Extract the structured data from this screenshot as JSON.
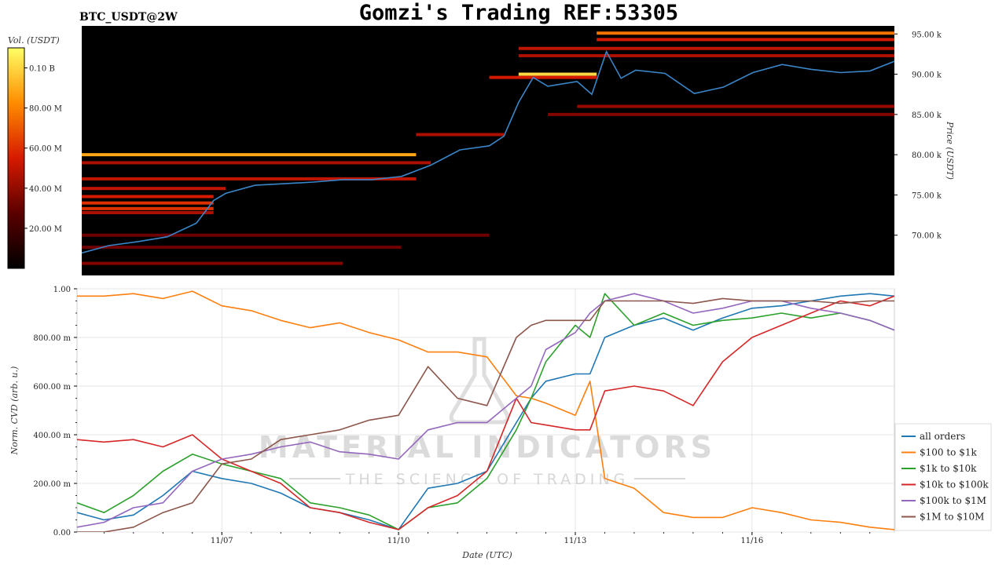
{
  "header": {
    "symbol": "BTC_USDT@2W",
    "title": "Gomzi's Trading REF:53305"
  },
  "watermark": {
    "line1": "MATERIAL INDICATORS",
    "line2": "THE SCIENCE OF TRADING"
  },
  "colors": {
    "price_line": "#3a86c8",
    "heat_background": "#000000",
    "series": [
      "#1f77b4",
      "#ff7f0e",
      "#2ca02c",
      "#d62728",
      "#9467bd",
      "#8c564b"
    ]
  },
  "chart_data": [
    {
      "type": "heatmap",
      "colorbar": {
        "label": "Vol. (USDT)",
        "ticks": [
          {
            "value": 20000000,
            "label": "20.00 M"
          },
          {
            "value": 40000000,
            "label": "40.00 M"
          },
          {
            "value": 60000000,
            "label": "60.00 M"
          },
          {
            "value": 80000000,
            "label": "80.00 M"
          },
          {
            "value": 100000000,
            "label": "0.10 B"
          }
        ],
        "range": [
          0,
          110000000
        ]
      },
      "ylabel": "Price (USDT)",
      "ylim": [
        65000,
        96000
      ],
      "yticks": [
        {
          "value": 70000,
          "label": "70.00 k"
        },
        {
          "value": 75000,
          "label": "75.00 k"
        },
        {
          "value": 80000,
          "label": "80.00 k"
        },
        {
          "value": 85000,
          "label": "85.00 k"
        },
        {
          "value": 90000,
          "label": "90.00 k"
        },
        {
          "value": 95000,
          "label": "95.00 k"
        }
      ],
      "xlim": [
        "11/04 13:00",
        "11/18 10:00"
      ],
      "price_line": {
        "x": [
          "11/04 13:00",
          "11/05 00:00",
          "11/05 12:00",
          "11/06 00:00",
          "11/06 12:00",
          "11/06 19:00",
          "11/07 00:00",
          "11/07 12:00",
          "11/08 00:00",
          "11/08 12:00",
          "11/09 00:00",
          "11/09 12:00",
          "11/10 00:00",
          "11/10 12:00",
          "11/11 00:00",
          "11/11 12:00",
          "11/11 18:00",
          "11/12 00:00",
          "11/12 06:00",
          "11/12 12:00",
          "11/13 00:00",
          "11/13 06:00",
          "11/13 12:00",
          "11/13 18:00",
          "11/14 00:00",
          "11/14 12:00",
          "11/15 00:00",
          "11/15 12:00",
          "11/16 00:00",
          "11/16 12:00",
          "11/17 00:00",
          "11/17 12:00",
          "11/18 00:00",
          "11/18 10:00"
        ],
        "y": [
          67800,
          68700,
          69200,
          69800,
          71500,
          74300,
          75200,
          76200,
          76400,
          76600,
          76900,
          76900,
          77300,
          78700,
          80600,
          81100,
          82300,
          86500,
          89600,
          88500,
          89100,
          87500,
          92800,
          89500,
          90500,
          90100,
          87600,
          88400,
          90200,
          91200,
          90600,
          90200,
          90400,
          91600
        ]
      },
      "walls": [
        {
          "price": 95100,
          "from": "11/13 08:00",
          "to": "11/18 10:00",
          "level": 0.75
        },
        {
          "price": 94300,
          "from": "11/13 08:00",
          "to": "11/18 10:00",
          "level": 0.55
        },
        {
          "price": 93200,
          "from": "11/12 00:00",
          "to": "11/18 10:00",
          "level": 0.5
        },
        {
          "price": 92300,
          "from": "11/12 00:00",
          "to": "11/18 10:00",
          "level": 0.45
        },
        {
          "price": 90000,
          "from": "11/12 00:00",
          "to": "11/13 08:00",
          "level": 0.95
        },
        {
          "price": 89600,
          "from": "11/11 12:00",
          "to": "11/13 08:00",
          "level": 0.55
        },
        {
          "price": 86000,
          "from": "11/13 00:00",
          "to": "11/18 10:00",
          "level": 0.4
        },
        {
          "price": 85000,
          "from": "11/12 12:00",
          "to": "11/18 10:00",
          "level": 0.35
        },
        {
          "price": 82500,
          "from": "11/10 06:00",
          "to": "11/11 18:00",
          "level": 0.45
        },
        {
          "price": 80000,
          "from": "11/04 13:00",
          "to": "11/10 06:00",
          "level": 0.85
        },
        {
          "price": 79000,
          "from": "11/04 13:00",
          "to": "11/10 12:00",
          "level": 0.45
        },
        {
          "price": 77000,
          "from": "11/04 13:00",
          "to": "11/10 06:00",
          "level": 0.5
        },
        {
          "price": 75800,
          "from": "11/04 13:00",
          "to": "11/07 00:00",
          "level": 0.5
        },
        {
          "price": 74800,
          "from": "11/04 13:00",
          "to": "11/06 19:00",
          "level": 0.55
        },
        {
          "price": 74000,
          "from": "11/04 13:00",
          "to": "11/06 19:00",
          "level": 0.6
        },
        {
          "price": 73300,
          "from": "11/04 13:00",
          "to": "11/06 19:00",
          "level": 0.6
        },
        {
          "price": 72800,
          "from": "11/04 13:00",
          "to": "11/06 19:00",
          "level": 0.45
        },
        {
          "price": 70000,
          "from": "11/04 13:00",
          "to": "11/11 12:00",
          "level": 0.3
        },
        {
          "price": 68500,
          "from": "11/04 13:00",
          "to": "11/10 00:00",
          "level": 0.3
        },
        {
          "price": 66500,
          "from": "11/04 13:00",
          "to": "11/09 00:00",
          "level": 0.35
        }
      ]
    },
    {
      "type": "line",
      "xlabel": "Date (UTC)",
      "ylabel": "Norm. CVD (arb. u.)",
      "ylim": [
        0,
        1
      ],
      "xlim": [
        "11/04 13:00",
        "11/18 10:00"
      ],
      "yticks": [
        {
          "value": 0,
          "label": "0.00"
        },
        {
          "value": 0.2,
          "label": "200.00 m"
        },
        {
          "value": 0.4,
          "label": "400.00 m"
        },
        {
          "value": 0.6,
          "label": "600.00 m"
        },
        {
          "value": 0.8,
          "label": "800.00 m"
        },
        {
          "value": 1.0,
          "label": "1.00"
        }
      ],
      "xticks": [
        {
          "value": "11/07 00:00",
          "label": "11/07"
        },
        {
          "value": "11/10 00:00",
          "label": "11/10"
        },
        {
          "value": "11/13 00:00",
          "label": "11/13"
        },
        {
          "value": "11/16 00:00",
          "label": "11/16"
        }
      ],
      "grid": true,
      "legend_position": "lower-right outside",
      "x": [
        "11/04 13:00",
        "11/05 00:00",
        "11/05 12:00",
        "11/06 00:00",
        "11/06 12:00",
        "11/07 00:00",
        "11/07 12:00",
        "11/08 00:00",
        "11/08 12:00",
        "11/09 00:00",
        "11/09 12:00",
        "11/10 00:00",
        "11/10 12:00",
        "11/11 00:00",
        "11/11 12:00",
        "11/12 00:00",
        "11/12 06:00",
        "11/12 12:00",
        "11/13 00:00",
        "11/13 06:00",
        "11/13 12:00",
        "11/14 00:00",
        "11/14 12:00",
        "11/15 00:00",
        "11/15 12:00",
        "11/16 00:00",
        "11/16 12:00",
        "11/17 00:00",
        "11/17 12:00",
        "11/18 00:00",
        "11/18 10:00"
      ],
      "series": [
        {
          "name": "all orders",
          "values": [
            0.08,
            0.05,
            0.07,
            0.15,
            0.25,
            0.22,
            0.2,
            0.16,
            0.1,
            0.08,
            0.05,
            0.01,
            0.18,
            0.2,
            0.25,
            0.45,
            0.55,
            0.62,
            0.65,
            0.65,
            0.8,
            0.85,
            0.88,
            0.83,
            0.88,
            0.92,
            0.93,
            0.95,
            0.97,
            0.98,
            0.97
          ]
        },
        {
          "name": "$100 to $1k",
          "values": [
            0.97,
            0.97,
            0.98,
            0.96,
            0.99,
            0.93,
            0.91,
            0.87,
            0.84,
            0.86,
            0.82,
            0.79,
            0.74,
            0.74,
            0.72,
            0.56,
            0.55,
            0.53,
            0.48,
            0.62,
            0.22,
            0.18,
            0.08,
            0.06,
            0.06,
            0.1,
            0.08,
            0.05,
            0.04,
            0.02,
            0.01
          ]
        },
        {
          "name": "$1k to $10k",
          "values": [
            0.12,
            0.08,
            0.15,
            0.25,
            0.32,
            0.28,
            0.25,
            0.22,
            0.12,
            0.1,
            0.07,
            0.01,
            0.1,
            0.12,
            0.22,
            0.42,
            0.55,
            0.7,
            0.85,
            0.8,
            0.98,
            0.85,
            0.9,
            0.85,
            0.87,
            0.88,
            0.9,
            0.88,
            0.9,
            0.87,
            0.83
          ]
        },
        {
          "name": "$10k to $100k",
          "values": [
            0.38,
            0.37,
            0.38,
            0.35,
            0.4,
            0.3,
            0.25,
            0.2,
            0.1,
            0.08,
            0.04,
            0.01,
            0.1,
            0.15,
            0.25,
            0.55,
            0.45,
            0.44,
            0.42,
            0.42,
            0.58,
            0.6,
            0.58,
            0.52,
            0.7,
            0.8,
            0.85,
            0.9,
            0.95,
            0.93,
            0.97
          ]
        },
        {
          "name": "$100k to $1M",
          "values": [
            0.02,
            0.04,
            0.1,
            0.12,
            0.25,
            0.3,
            0.32,
            0.35,
            0.37,
            0.33,
            0.32,
            0.3,
            0.42,
            0.45,
            0.45,
            0.55,
            0.6,
            0.75,
            0.82,
            0.9,
            0.95,
            0.98,
            0.95,
            0.9,
            0.92,
            0.95,
            0.95,
            0.92,
            0.9,
            0.87,
            0.83
          ]
        },
        {
          "name": "$1M to $10M",
          "values": [
            0.0,
            0.0,
            0.02,
            0.08,
            0.12,
            0.28,
            0.3,
            0.38,
            0.4,
            0.42,
            0.46,
            0.48,
            0.68,
            0.55,
            0.52,
            0.8,
            0.85,
            0.87,
            0.87,
            0.87,
            0.95,
            0.95,
            0.95,
            0.94,
            0.96,
            0.95,
            0.95,
            0.95,
            0.94,
            0.95,
            0.95
          ]
        }
      ]
    }
  ]
}
